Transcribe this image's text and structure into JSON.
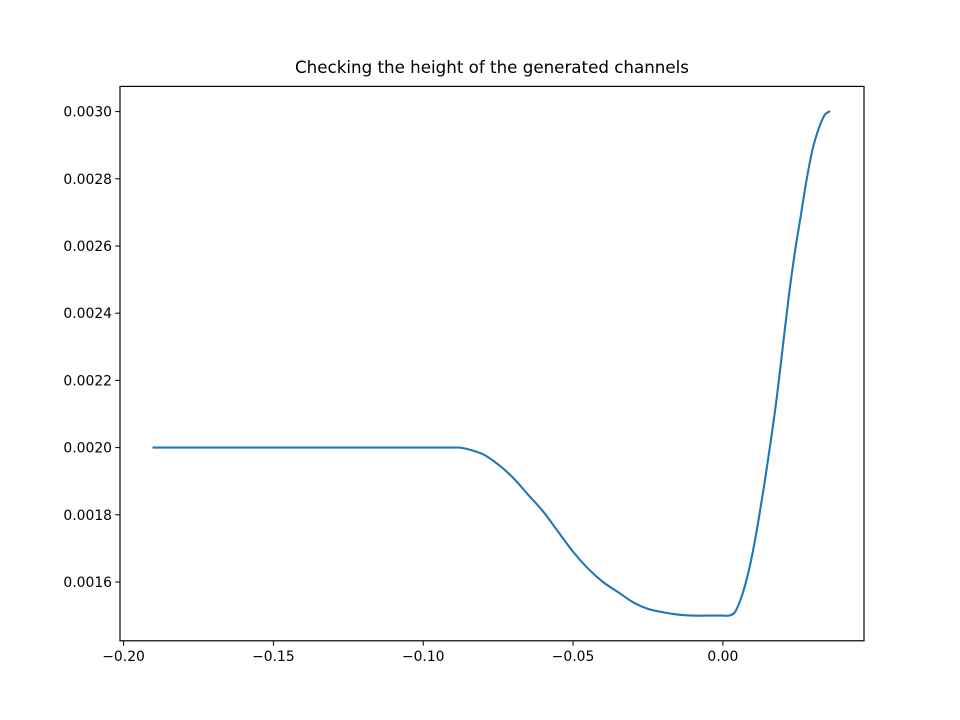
{
  "chart_data": {
    "type": "line",
    "title": "Checking the height of the generated channels",
    "xlabel": "",
    "ylabel": "",
    "xlim": [
      -0.2012,
      0.0471
    ],
    "ylim": [
      0.001425,
      0.003075
    ],
    "grid": false,
    "legend": "none",
    "x_ticks": [
      {
        "value": -0.2,
        "label": "−0.20"
      },
      {
        "value": -0.15,
        "label": "−0.15"
      },
      {
        "value": -0.1,
        "label": "−0.10"
      },
      {
        "value": -0.05,
        "label": "−0.05"
      },
      {
        "value": 0.0,
        "label": "0.00"
      }
    ],
    "y_ticks": [
      {
        "value": 0.0016,
        "label": "0.0016"
      },
      {
        "value": 0.0018,
        "label": "0.0018"
      },
      {
        "value": 0.002,
        "label": "0.0020"
      },
      {
        "value": 0.0022,
        "label": "0.0022"
      },
      {
        "value": 0.0024,
        "label": "0.0024"
      },
      {
        "value": 0.0026,
        "label": "0.0026"
      },
      {
        "value": 0.0028,
        "label": "0.0028"
      },
      {
        "value": 0.003,
        "label": "0.0030"
      }
    ],
    "series": [
      {
        "color": "#1f77b4",
        "x": [
          -0.19,
          -0.15,
          -0.1,
          -0.09,
          -0.088,
          -0.085,
          -0.08,
          -0.075,
          -0.07,
          -0.065,
          -0.06,
          -0.055,
          -0.05,
          -0.045,
          -0.04,
          -0.035,
          -0.03,
          -0.025,
          -0.02,
          -0.015,
          -0.01,
          -0.005,
          0.0,
          0.002,
          0.004,
          0.006,
          0.008,
          0.01,
          0.012,
          0.014,
          0.016,
          0.018,
          0.02,
          0.022,
          0.024,
          0.026,
          0.028,
          0.03,
          0.032,
          0.034,
          0.0355
        ],
        "y": [
          0.002,
          0.002,
          0.002,
          0.002,
          0.002,
          0.001995,
          0.00198,
          0.00195,
          0.00191,
          0.00186,
          0.00181,
          0.00175,
          0.00169,
          0.00164,
          0.0016,
          0.00157,
          0.00154,
          0.00152,
          0.00151,
          0.001503,
          0.0015,
          0.0015,
          0.0015,
          0.0015,
          0.00151,
          0.00155,
          0.00161,
          0.00169,
          0.00179,
          0.0019,
          0.00202,
          0.00215,
          0.0023,
          0.00245,
          0.00258,
          0.00269,
          0.0028,
          0.00289,
          0.00295,
          0.00299,
          0.003
        ]
      }
    ]
  }
}
